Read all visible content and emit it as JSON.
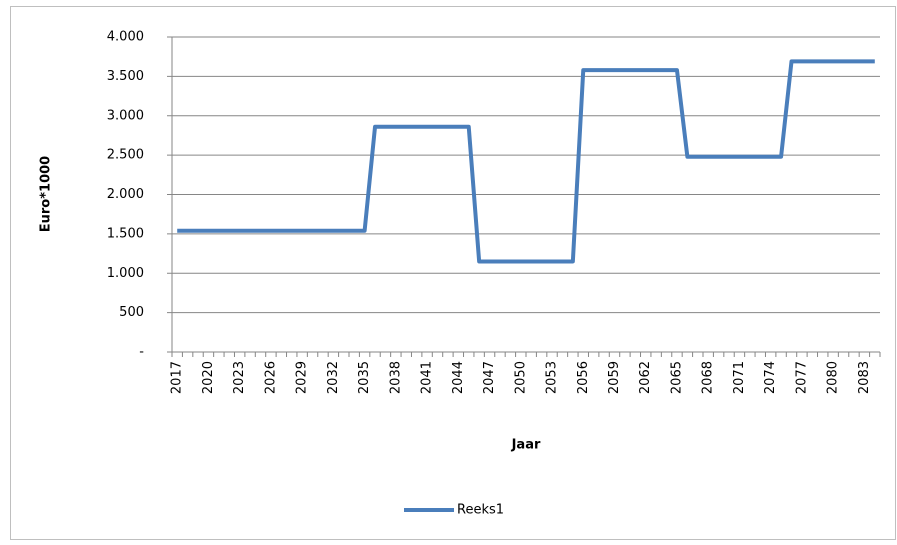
{
  "chart_data": {
    "type": "line",
    "y_label": "Euro*1000",
    "x_label": "Jaar",
    "categories": [
      "2017",
      null,
      null,
      "2020",
      null,
      null,
      "2023",
      null,
      null,
      "2026",
      null,
      null,
      "2029",
      null,
      null,
      "2032",
      null,
      null,
      "2035",
      null,
      null,
      "2038",
      null,
      null,
      "2041",
      null,
      null,
      "2044",
      null,
      null,
      "2047",
      null,
      null,
      "2050",
      null,
      null,
      "2053",
      null,
      null,
      "2056",
      null,
      null,
      "2059",
      null,
      null,
      "2062",
      null,
      null,
      "2065",
      null,
      null,
      "2068",
      null,
      null,
      "2071",
      null,
      null,
      "2074",
      null,
      null,
      "2077",
      null,
      null,
      "2080",
      null,
      null,
      "2083",
      null
    ],
    "series": [
      {
        "name": "Reeks1",
        "color": "#4a7ebb",
        "values": [
          1540,
          1540,
          1540,
          1540,
          1540,
          1540,
          1540,
          1540,
          1540,
          1540,
          1540,
          1540,
          1540,
          1540,
          1540,
          1540,
          1540,
          1540,
          1540,
          2860,
          2860,
          2860,
          2860,
          2860,
          2860,
          2860,
          2860,
          2860,
          2860,
          1150,
          1150,
          1150,
          1150,
          1150,
          1150,
          1150,
          1150,
          1150,
          1150,
          3580,
          3580,
          3580,
          3580,
          3580,
          3580,
          3580,
          3580,
          3580,
          3580,
          2480,
          2480,
          2480,
          2480,
          2480,
          2480,
          2480,
          2480,
          2480,
          2480,
          3690,
          3690,
          3690,
          3690,
          3690,
          3690,
          3690,
          3690,
          3690
        ]
      }
    ],
    "ylim": [
      0,
      4000
    ],
    "yticks": [
      {
        "value": 0,
        "label": "-"
      },
      500,
      {
        "value": 1000,
        "label": "1.000"
      },
      {
        "value": 1500,
        "label": "1.500"
      },
      {
        "value": 2000,
        "label": "2.000"
      },
      {
        "value": 2500,
        "label": "2.500"
      },
      {
        "value": 3000,
        "label": "3.000"
      },
      {
        "value": 3500,
        "label": "3.500"
      },
      {
        "value": 4000,
        "label": "4.000"
      }
    ],
    "grid": true,
    "legend": "bottom"
  }
}
